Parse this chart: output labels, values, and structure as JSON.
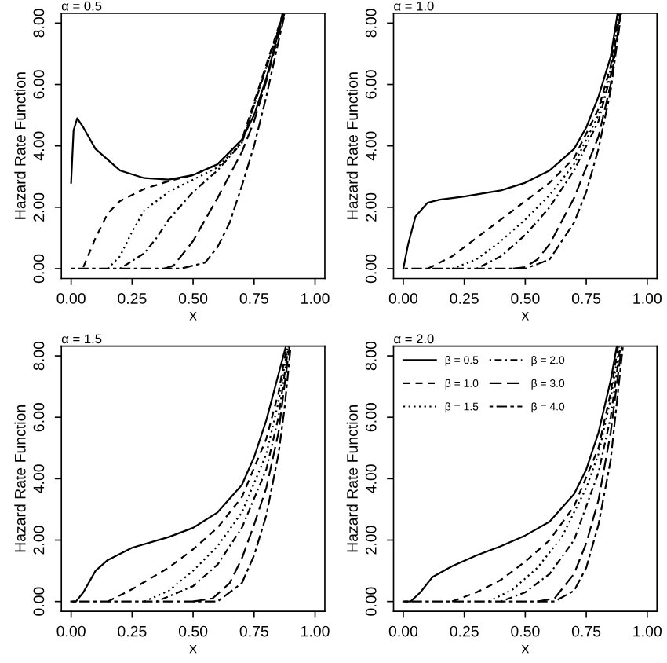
{
  "chart_data": [
    {
      "type": "line",
      "title": "α = 0.5",
      "xlabel": "x",
      "ylabel": "Hazard Rate Function",
      "xlim": [
        -0.04,
        1.04
      ],
      "ylim": [
        -0.32,
        8.32
      ],
      "xticks": [
        {
          "value": 0,
          "label": "0.00"
        },
        {
          "value": 0.25,
          "label": "0.25"
        },
        {
          "value": 0.5,
          "label": "0.50"
        },
        {
          "value": 0.75,
          "label": "0.75"
        },
        {
          "value": 1,
          "label": "1.00"
        }
      ],
      "yticks": [
        {
          "value": 0,
          "label": "0.00"
        },
        {
          "value": 2,
          "label": "2.00"
        },
        {
          "value": 4,
          "label": "4.00"
        },
        {
          "value": 6,
          "label": "6.00"
        },
        {
          "value": 8,
          "label": "8.00"
        }
      ],
      "series": [
        {
          "color": "#000000",
          "line_style": "solid",
          "x": [
            0,
            0.01,
            0.025,
            0.05,
            0.1,
            0.2,
            0.3,
            0.4,
            0.5,
            0.6,
            0.7,
            0.75,
            0.8,
            0.85,
            0.866
          ],
          "values": [
            2.8,
            4.5,
            4.9,
            4.6,
            3.9,
            3.2,
            2.95,
            2.9,
            3.05,
            3.4,
            4.2,
            5.0,
            6.2,
            7.7,
            8.3
          ]
        },
        {
          "color": "#000000",
          "line_style": "dashed",
          "x": [
            0.05,
            0.1,
            0.15,
            0.2,
            0.3,
            0.4,
            0.5,
            0.6,
            0.7,
            0.868
          ],
          "values": [
            0.05,
            1.0,
            1.8,
            2.2,
            2.6,
            2.85,
            3.05,
            3.4,
            4.2,
            8.3
          ]
        },
        {
          "color": "#000000",
          "line_style": "dotted",
          "x": [
            0.15,
            0.2,
            0.25,
            0.3,
            0.4,
            0.5,
            0.6,
            0.7,
            0.87
          ],
          "values": [
            0,
            0.4,
            1.2,
            1.9,
            2.5,
            2.9,
            3.3,
            4.1,
            8.3
          ]
        },
        {
          "color": "#000000",
          "line_style": "dashdot",
          "x": [
            0.2,
            0.3,
            0.35,
            0.4,
            0.5,
            0.6,
            0.7,
            0.872
          ],
          "values": [
            0,
            0.5,
            1.0,
            1.6,
            2.5,
            3.2,
            4.1,
            8.3
          ]
        },
        {
          "color": "#000000",
          "line_style": "longdash",
          "x": [
            0.38,
            0.42,
            0.5,
            0.6,
            0.7,
            0.75,
            0.8,
            0.85,
            0.874
          ],
          "values": [
            0,
            0.1,
            0.9,
            2.3,
            3.8,
            4.8,
            6.1,
            7.6,
            8.3
          ]
        },
        {
          "color": "#000000",
          "line_style": "twodash",
          "x": [
            0,
            0.45,
            0.55,
            0.6,
            0.65,
            0.7,
            0.75,
            0.8,
            0.85,
            0.876
          ],
          "values": [
            0,
            0,
            0.2,
            0.7,
            1.5,
            2.7,
            4.0,
            5.6,
            7.4,
            8.3
          ]
        }
      ]
    },
    {
      "type": "line",
      "title": "α = 1.0",
      "xlabel": "x",
      "ylabel": "Hazard Rate Function",
      "xlim": [
        -0.04,
        1.04
      ],
      "ylim": [
        -0.32,
        8.32
      ],
      "xticks": [
        {
          "value": 0,
          "label": "0.00"
        },
        {
          "value": 0.25,
          "label": "0.25"
        },
        {
          "value": 0.5,
          "label": "0.50"
        },
        {
          "value": 0.75,
          "label": "0.75"
        },
        {
          "value": 1,
          "label": "1.00"
        }
      ],
      "yticks": [
        {
          "value": 0,
          "label": "0.00"
        },
        {
          "value": 2,
          "label": "2.00"
        },
        {
          "value": 4,
          "label": "4.00"
        },
        {
          "value": 6,
          "label": "6.00"
        },
        {
          "value": 8,
          "label": "8.00"
        }
      ],
      "series": [
        {
          "color": "#000000",
          "line_style": "solid",
          "x": [
            0,
            0.02,
            0.05,
            0.1,
            0.15,
            0.25,
            0.4,
            0.5,
            0.6,
            0.7,
            0.75,
            0.8,
            0.85,
            0.878
          ],
          "values": [
            0,
            0.8,
            1.7,
            2.15,
            2.25,
            2.35,
            2.55,
            2.8,
            3.2,
            3.9,
            4.6,
            5.6,
            6.9,
            8.3
          ]
        },
        {
          "color": "#000000",
          "line_style": "dashed",
          "x": [
            0.1,
            0.2,
            0.3,
            0.4,
            0.5,
            0.6,
            0.7,
            0.8,
            0.85,
            0.881
          ],
          "values": [
            0,
            0.4,
            1.0,
            1.6,
            2.2,
            2.8,
            3.6,
            5.2,
            6.6,
            8.3
          ]
        },
        {
          "color": "#000000",
          "line_style": "dotted",
          "x": [
            0.2,
            0.3,
            0.4,
            0.5,
            0.6,
            0.7,
            0.8,
            0.85,
            0.884
          ],
          "values": [
            0,
            0.3,
            0.9,
            1.6,
            2.4,
            3.4,
            5.0,
            6.5,
            8.3
          ]
        },
        {
          "color": "#000000",
          "line_style": "dashdot",
          "x": [
            0.3,
            0.4,
            0.5,
            0.6,
            0.7,
            0.8,
            0.85,
            0.887
          ],
          "values": [
            0,
            0.4,
            1.1,
            2.0,
            3.2,
            4.8,
            6.3,
            8.3
          ]
        },
        {
          "color": "#000000",
          "line_style": "longdash",
          "x": [
            0.45,
            0.5,
            0.55,
            0.6,
            0.7,
            0.8,
            0.85,
            0.89
          ],
          "values": [
            0,
            0.05,
            0.3,
            0.8,
            2.3,
            4.3,
            6.0,
            8.3
          ]
        },
        {
          "color": "#000000",
          "line_style": "twodash",
          "x": [
            0.005,
            0.5,
            0.6,
            0.7,
            0.75,
            0.8,
            0.85,
            0.893
          ],
          "values": [
            0,
            0,
            0.3,
            1.5,
            2.5,
            3.9,
            5.8,
            8.3
          ]
        }
      ]
    },
    {
      "type": "line",
      "title": "α = 1.5",
      "xlabel": "x",
      "ylabel": "Hazard Rate Function",
      "xlim": [
        -0.04,
        1.04
      ],
      "ylim": [
        -0.32,
        8.32
      ],
      "xticks": [
        {
          "value": 0,
          "label": "0.00"
        },
        {
          "value": 0.25,
          "label": "0.25"
        },
        {
          "value": 0.5,
          "label": "0.50"
        },
        {
          "value": 0.75,
          "label": "0.75"
        },
        {
          "value": 1,
          "label": "1.00"
        }
      ],
      "yticks": [
        {
          "value": 0,
          "label": "0.00"
        },
        {
          "value": 2,
          "label": "2.00"
        },
        {
          "value": 4,
          "label": "4.00"
        },
        {
          "value": 6,
          "label": "6.00"
        },
        {
          "value": 8,
          "label": "8.00"
        }
      ],
      "series": [
        {
          "color": "#000000",
          "line_style": "solid",
          "x": [
            0,
            0.02,
            0.05,
            0.1,
            0.15,
            0.25,
            0.4,
            0.5,
            0.6,
            0.7,
            0.75,
            0.8,
            0.85,
            0.88
          ],
          "values": [
            0,
            0,
            0.3,
            1.0,
            1.35,
            1.75,
            2.1,
            2.4,
            2.9,
            3.8,
            4.7,
            5.9,
            7.4,
            8.3
          ]
        },
        {
          "color": "#000000",
          "line_style": "dashed",
          "x": [
            0.15,
            0.25,
            0.4,
            0.5,
            0.6,
            0.7,
            0.8,
            0.85,
            0.884
          ],
          "values": [
            0,
            0.4,
            1.1,
            1.7,
            2.4,
            3.4,
            5.3,
            6.8,
            8.3
          ]
        },
        {
          "color": "#000000",
          "line_style": "dotted",
          "x": [
            0.3,
            0.4,
            0.5,
            0.6,
            0.7,
            0.8,
            0.85,
            0.888
          ],
          "values": [
            0,
            0.35,
            1.0,
            1.8,
            2.9,
            4.8,
            6.5,
            8.3
          ]
        },
        {
          "color": "#000000",
          "line_style": "dashdot",
          "x": [
            0.35,
            0.5,
            0.6,
            0.7,
            0.8,
            0.85,
            0.891
          ],
          "values": [
            0,
            0.5,
            1.2,
            2.4,
            4.3,
            6.0,
            8.3
          ]
        },
        {
          "color": "#000000",
          "line_style": "longdash",
          "x": [
            0.5,
            0.58,
            0.65,
            0.7,
            0.75,
            0.8,
            0.85,
            0.895
          ],
          "values": [
            0,
            0.1,
            0.6,
            1.4,
            2.5,
            3.7,
            5.5,
            8.3
          ]
        },
        {
          "color": "#000000",
          "line_style": "twodash",
          "x": [
            0.005,
            0.6,
            0.7,
            0.75,
            0.8,
            0.85,
            0.875,
            0.9
          ],
          "values": [
            0,
            0,
            0.6,
            1.5,
            2.8,
            4.8,
            6.3,
            8.3
          ]
        }
      ]
    },
    {
      "type": "line",
      "title": "α = 2.0",
      "xlabel": "x",
      "ylabel": "Hazard Rate Function",
      "xlim": [
        -0.04,
        1.04
      ],
      "ylim": [
        -0.32,
        8.32
      ],
      "legend": "top left",
      "xticks": [
        {
          "value": 0,
          "label": "0.00"
        },
        {
          "value": 0.25,
          "label": "0.25"
        },
        {
          "value": 0.5,
          "label": "0.50"
        },
        {
          "value": 0.75,
          "label": "0.75"
        },
        {
          "value": 1,
          "label": "1.00"
        }
      ],
      "yticks": [
        {
          "value": 0,
          "label": "0.00"
        },
        {
          "value": 2,
          "label": "2.00"
        },
        {
          "value": 4,
          "label": "4.00"
        },
        {
          "value": 6,
          "label": "6.00"
        },
        {
          "value": 8,
          "label": "8.00"
        }
      ],
      "series": [
        {
          "name": "β = 0.5",
          "color": "#000000",
          "line_style": "solid",
          "x": [
            0,
            0.03,
            0.07,
            0.12,
            0.2,
            0.3,
            0.4,
            0.5,
            0.6,
            0.7,
            0.75,
            0.8,
            0.85,
            0.875
          ],
          "values": [
            0,
            0,
            0.3,
            0.8,
            1.15,
            1.5,
            1.8,
            2.15,
            2.6,
            3.5,
            4.3,
            5.5,
            7.2,
            8.3
          ]
        },
        {
          "name": "β = 1.0",
          "color": "#000000",
          "line_style": "dashed",
          "x": [
            0.2,
            0.3,
            0.4,
            0.5,
            0.6,
            0.7,
            0.8,
            0.85,
            0.88
          ],
          "values": [
            0,
            0.3,
            0.7,
            1.3,
            2.0,
            3.1,
            5.0,
            6.8,
            8.3
          ]
        },
        {
          "name": "β = 1.5",
          "color": "#000000",
          "line_style": "dotted",
          "x": [
            0.35,
            0.45,
            0.55,
            0.65,
            0.75,
            0.8,
            0.85,
            0.885
          ],
          "values": [
            0,
            0.4,
            1.1,
            2.1,
            3.7,
            4.8,
            6.6,
            8.3
          ]
        },
        {
          "name": "β = 2.0",
          "color": "#000000",
          "line_style": "dashdot",
          "x": [
            0.4,
            0.5,
            0.6,
            0.7,
            0.8,
            0.85,
            0.89
          ],
          "values": [
            0,
            0.3,
            0.9,
            2.0,
            4.2,
            6.0,
            8.3
          ]
        },
        {
          "name": "β = 3.0",
          "color": "#000000",
          "line_style": "longdash",
          "x": [
            0.55,
            0.62,
            0.7,
            0.75,
            0.8,
            0.85,
            0.895
          ],
          "values": [
            0,
            0.1,
            0.9,
            1.9,
            3.3,
            5.5,
            8.3
          ]
        },
        {
          "name": "β = 4.0",
          "color": "#000000",
          "line_style": "twodash",
          "x": [
            0.005,
            0.62,
            0.7,
            0.75,
            0.8,
            0.85,
            0.9
          ],
          "values": [
            0,
            0,
            0.35,
            1.1,
            2.5,
            4.6,
            8.3
          ]
        }
      ]
    }
  ]
}
